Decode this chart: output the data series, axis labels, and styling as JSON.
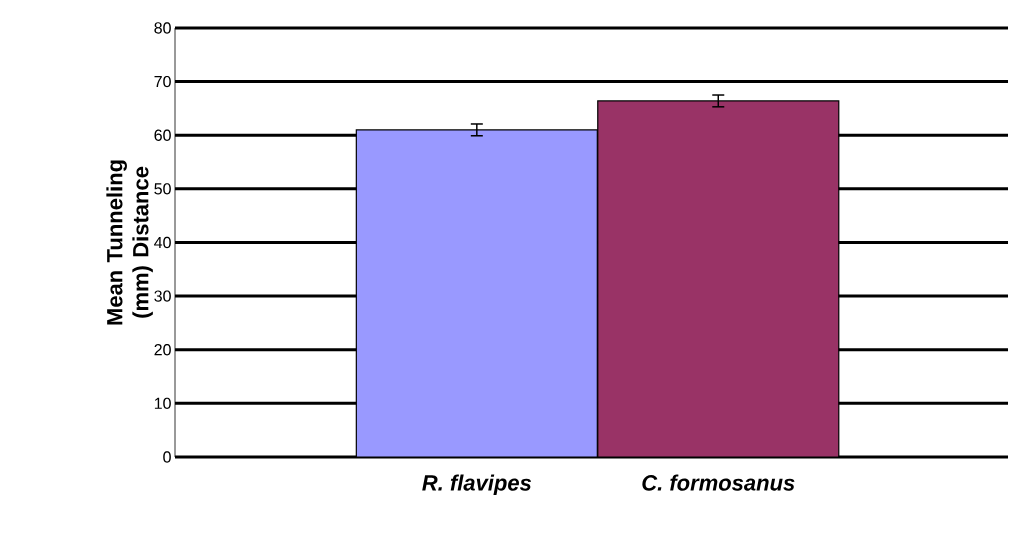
{
  "chart_data": {
    "type": "bar",
    "ylabel": "Mean Tunneling (mm) Distance",
    "categories": [
      "*R. flavipes*",
      "*C. formosanus*"
    ],
    "values": [
      61,
      66.4
    ],
    "errors": [
      1.1,
      1.1
    ],
    "colors": [
      "#9999ff",
      "#993366"
    ],
    "ylim": [
      0,
      80
    ],
    "yticks": [
      0,
      10,
      20,
      30,
      40,
      50,
      60,
      70,
      80
    ],
    "grid": "y"
  }
}
